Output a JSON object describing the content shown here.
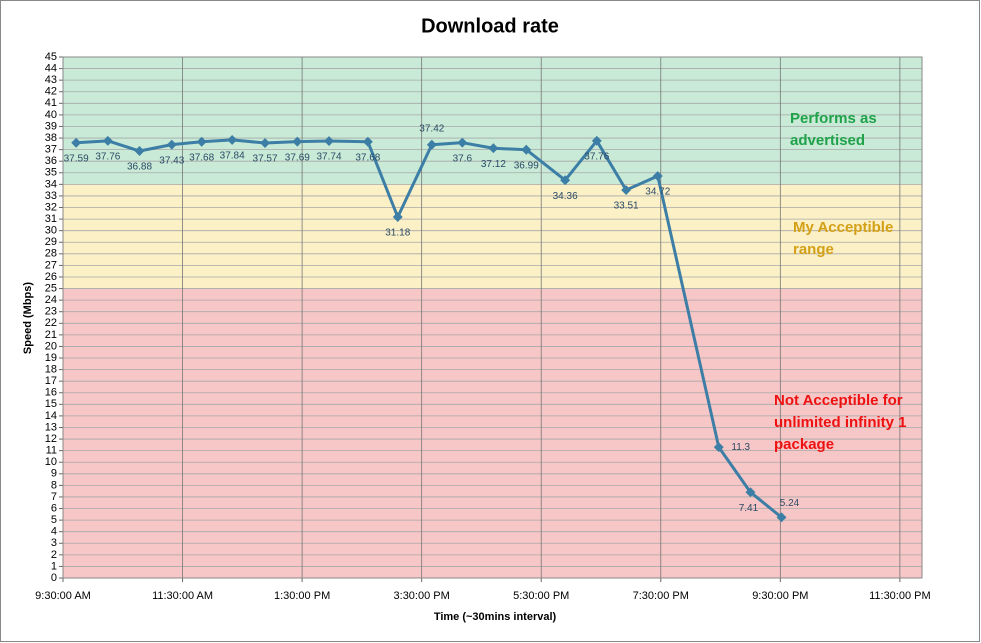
{
  "chart_data": {
    "type": "line",
    "title": "Download rate",
    "x_label": "Time (~30mins interval)",
    "y_label": "Speed (Mbps)",
    "x": [
      9.72,
      10.25,
      10.78,
      11.32,
      11.82,
      12.33,
      12.88,
      13.42,
      13.95,
      14.6,
      15.1,
      15.67,
      16.18,
      16.7,
      17.25,
      17.9,
      18.43,
      18.92,
      19.45,
      20.47,
      21.0,
      21.52
    ],
    "series": [
      {
        "name": "Download rate",
        "color": "#3d7ea6",
        "values": [
          37.59,
          37.76,
          36.88,
          37.43,
          37.68,
          37.84,
          37.57,
          37.69,
          37.74,
          37.68,
          31.18,
          37.42,
          37.6,
          37.12,
          36.99,
          34.36,
          37.76,
          33.51,
          34.72,
          11.3,
          7.41,
          5.24
        ]
      }
    ],
    "xlim": [
      9.5,
      23.87
    ],
    "xticks": [
      {
        "value": 9.5,
        "label": "9:30:00 AM"
      },
      {
        "value": 11.5,
        "label": "11:30:00 AM"
      },
      {
        "value": 13.5,
        "label": "1:30:00 PM"
      },
      {
        "value": 15.5,
        "label": "3:30:00 PM"
      },
      {
        "value": 17.5,
        "label": "5:30:00 PM"
      },
      {
        "value": 19.5,
        "label": "7:30:00 PM"
      },
      {
        "value": 21.5,
        "label": "9:30:00 PM"
      },
      {
        "value": 23.5,
        "label": "11:30:00 PM"
      }
    ],
    "ylim": [
      0,
      45
    ],
    "yticks": [
      0,
      1,
      2,
      3,
      4,
      5,
      6,
      7,
      8,
      9,
      10,
      11,
      12,
      13,
      14,
      15,
      16,
      17,
      18,
      19,
      20,
      21,
      22,
      23,
      24,
      25,
      26,
      27,
      28,
      29,
      30,
      31,
      32,
      33,
      34,
      35,
      36,
      37,
      38,
      39,
      40,
      41,
      42,
      43,
      44,
      45
    ],
    "grid": true,
    "bands": [
      {
        "from": 34,
        "to": 45,
        "color": "#c8ead6",
        "text_color": "#1fa24a",
        "label": "Performs as advertised"
      },
      {
        "from": 25,
        "to": 34,
        "color": "#fbf0c6",
        "text_color": "#d4a017",
        "label": "My Acceptible range"
      },
      {
        "from": 0,
        "to": 25,
        "color": "#f7c6c6",
        "text_color": "#ee1111",
        "label": "Not Acceptible for unlimited infinity 1 package"
      }
    ]
  }
}
